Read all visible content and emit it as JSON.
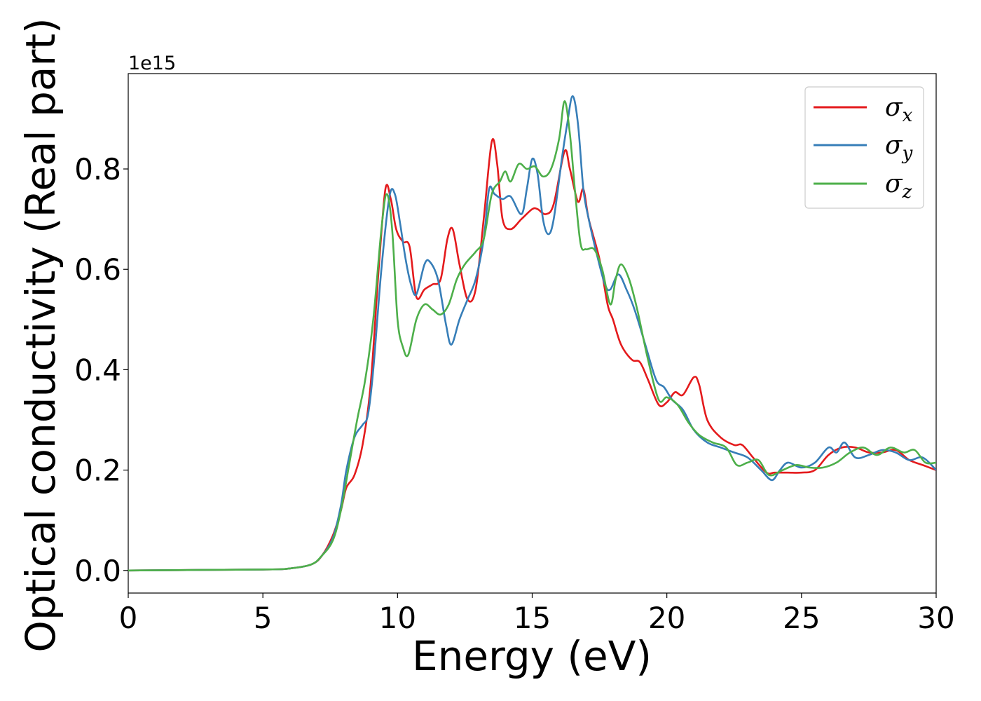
{
  "chart_data": {
    "type": "line",
    "xlabel": "Energy (eV)",
    "ylabel": "Optical conductivity (Real part)",
    "offset_label": "1e15",
    "xlim": [
      0,
      30
    ],
    "ylim": [
      -0.045,
      0.99
    ],
    "xticks": [
      0,
      5,
      10,
      15,
      20,
      25,
      30
    ],
    "yticks": [
      0.0,
      0.2,
      0.4,
      0.6,
      0.8
    ],
    "xtick_labels": [
      "0",
      "5",
      "10",
      "15",
      "20",
      "25",
      "30"
    ],
    "ytick_labels": [
      "0.0",
      "0.2",
      "0.4",
      "0.6",
      "0.8"
    ],
    "grid": false,
    "legend_position": "top-right",
    "series": [
      {
        "name": "σ",
        "subscript": "x",
        "color": "#e41a1c",
        "points": [
          [
            0,
            0
          ],
          [
            5,
            0.002
          ],
          [
            6,
            0.004
          ],
          [
            6.8,
            0.012
          ],
          [
            7.2,
            0.03
          ],
          [
            7.6,
            0.07
          ],
          [
            7.9,
            0.12
          ],
          [
            8.1,
            0.165
          ],
          [
            8.4,
            0.19
          ],
          [
            8.7,
            0.25
          ],
          [
            9.0,
            0.37
          ],
          [
            9.3,
            0.6
          ],
          [
            9.55,
            0.76
          ],
          [
            9.75,
            0.74
          ],
          [
            9.95,
            0.68
          ],
          [
            10.2,
            0.655
          ],
          [
            10.45,
            0.645
          ],
          [
            10.7,
            0.545
          ],
          [
            11.0,
            0.56
          ],
          [
            11.3,
            0.57
          ],
          [
            11.6,
            0.58
          ],
          [
            11.85,
            0.66
          ],
          [
            12.05,
            0.68
          ],
          [
            12.3,
            0.61
          ],
          [
            12.6,
            0.54
          ],
          [
            12.9,
            0.56
          ],
          [
            13.2,
            0.7
          ],
          [
            13.5,
            0.855
          ],
          [
            13.7,
            0.81
          ],
          [
            13.9,
            0.7
          ],
          [
            14.2,
            0.68
          ],
          [
            14.6,
            0.7
          ],
          [
            15.0,
            0.72
          ],
          [
            15.2,
            0.72
          ],
          [
            15.5,
            0.71
          ],
          [
            15.8,
            0.73
          ],
          [
            16.2,
            0.835
          ],
          [
            16.4,
            0.8
          ],
          [
            16.7,
            0.735
          ],
          [
            16.9,
            0.76
          ],
          [
            17.1,
            0.7
          ],
          [
            17.5,
            0.62
          ],
          [
            17.8,
            0.53
          ],
          [
            18.0,
            0.5
          ],
          [
            18.3,
            0.45
          ],
          [
            18.7,
            0.42
          ],
          [
            19.0,
            0.415
          ],
          [
            19.3,
            0.38
          ],
          [
            19.7,
            0.33
          ],
          [
            20.0,
            0.335
          ],
          [
            20.3,
            0.355
          ],
          [
            20.6,
            0.35
          ],
          [
            21.0,
            0.385
          ],
          [
            21.2,
            0.37
          ],
          [
            21.5,
            0.3
          ],
          [
            22.0,
            0.265
          ],
          [
            22.5,
            0.25
          ],
          [
            22.8,
            0.25
          ],
          [
            23.2,
            0.225
          ],
          [
            23.7,
            0.195
          ],
          [
            24.0,
            0.195
          ],
          [
            24.5,
            0.195
          ],
          [
            25.0,
            0.195
          ],
          [
            25.5,
            0.2
          ],
          [
            26.0,
            0.23
          ],
          [
            26.5,
            0.245
          ],
          [
            27.0,
            0.245
          ],
          [
            27.5,
            0.235
          ],
          [
            28.0,
            0.235
          ],
          [
            28.5,
            0.24
          ],
          [
            29.0,
            0.22
          ],
          [
            29.5,
            0.21
          ],
          [
            30,
            0.2
          ]
        ]
      },
      {
        "name": "σ",
        "subscript": "y",
        "color": "#377eb8",
        "points": [
          [
            0,
            0
          ],
          [
            5,
            0.002
          ],
          [
            6,
            0.004
          ],
          [
            6.8,
            0.012
          ],
          [
            7.2,
            0.03
          ],
          [
            7.6,
            0.065
          ],
          [
            7.9,
            0.13
          ],
          [
            8.1,
            0.2
          ],
          [
            8.4,
            0.265
          ],
          [
            8.7,
            0.29
          ],
          [
            8.9,
            0.31
          ],
          [
            9.1,
            0.4
          ],
          [
            9.4,
            0.6
          ],
          [
            9.7,
            0.745
          ],
          [
            9.9,
            0.75
          ],
          [
            10.1,
            0.69
          ],
          [
            10.3,
            0.62
          ],
          [
            10.5,
            0.57
          ],
          [
            10.7,
            0.55
          ],
          [
            11.0,
            0.61
          ],
          [
            11.2,
            0.615
          ],
          [
            11.5,
            0.58
          ],
          [
            11.8,
            0.49
          ],
          [
            12.0,
            0.45
          ],
          [
            12.3,
            0.5
          ],
          [
            12.6,
            0.54
          ],
          [
            12.9,
            0.58
          ],
          [
            13.2,
            0.66
          ],
          [
            13.4,
            0.76
          ],
          [
            13.6,
            0.75
          ],
          [
            13.9,
            0.74
          ],
          [
            14.2,
            0.745
          ],
          [
            14.6,
            0.71
          ],
          [
            14.8,
            0.76
          ],
          [
            15.0,
            0.82
          ],
          [
            15.2,
            0.79
          ],
          [
            15.4,
            0.7
          ],
          [
            15.6,
            0.67
          ],
          [
            15.8,
            0.7
          ],
          [
            16.1,
            0.82
          ],
          [
            16.3,
            0.89
          ],
          [
            16.5,
            0.945
          ],
          [
            16.7,
            0.89
          ],
          [
            16.9,
            0.76
          ],
          [
            17.1,
            0.7
          ],
          [
            17.4,
            0.63
          ],
          [
            17.7,
            0.57
          ],
          [
            17.9,
            0.56
          ],
          [
            18.2,
            0.59
          ],
          [
            18.5,
            0.56
          ],
          [
            18.8,
            0.52
          ],
          [
            19.2,
            0.45
          ],
          [
            19.6,
            0.38
          ],
          [
            19.9,
            0.365
          ],
          [
            20.2,
            0.34
          ],
          [
            20.6,
            0.32
          ],
          [
            21.0,
            0.28
          ],
          [
            21.5,
            0.255
          ],
          [
            22.0,
            0.245
          ],
          [
            22.5,
            0.235
          ],
          [
            23.0,
            0.225
          ],
          [
            23.5,
            0.2
          ],
          [
            23.9,
            0.18
          ],
          [
            24.2,
            0.2
          ],
          [
            24.5,
            0.215
          ],
          [
            25.0,
            0.205
          ],
          [
            25.5,
            0.215
          ],
          [
            26.0,
            0.245
          ],
          [
            26.3,
            0.235
          ],
          [
            26.6,
            0.255
          ],
          [
            27.0,
            0.225
          ],
          [
            27.5,
            0.23
          ],
          [
            28.0,
            0.24
          ],
          [
            28.5,
            0.235
          ],
          [
            29.0,
            0.22
          ],
          [
            29.5,
            0.225
          ],
          [
            30,
            0.2
          ]
        ]
      },
      {
        "name": "σ",
        "subscript": "z",
        "color": "#4daf4a",
        "points": [
          [
            0,
            0
          ],
          [
            5,
            0.002
          ],
          [
            6,
            0.004
          ],
          [
            6.8,
            0.012
          ],
          [
            7.2,
            0.03
          ],
          [
            7.6,
            0.06
          ],
          [
            7.9,
            0.12
          ],
          [
            8.2,
            0.21
          ],
          [
            8.5,
            0.3
          ],
          [
            8.8,
            0.38
          ],
          [
            9.1,
            0.5
          ],
          [
            9.4,
            0.68
          ],
          [
            9.6,
            0.75
          ],
          [
            9.8,
            0.68
          ],
          [
            10.0,
            0.5
          ],
          [
            10.2,
            0.445
          ],
          [
            10.4,
            0.43
          ],
          [
            10.7,
            0.5
          ],
          [
            11.0,
            0.53
          ],
          [
            11.3,
            0.52
          ],
          [
            11.6,
            0.51
          ],
          [
            11.9,
            0.53
          ],
          [
            12.2,
            0.58
          ],
          [
            12.5,
            0.61
          ],
          [
            12.9,
            0.635
          ],
          [
            13.2,
            0.66
          ],
          [
            13.5,
            0.75
          ],
          [
            13.8,
            0.775
          ],
          [
            14.0,
            0.795
          ],
          [
            14.2,
            0.775
          ],
          [
            14.5,
            0.81
          ],
          [
            14.8,
            0.8
          ],
          [
            15.1,
            0.805
          ],
          [
            15.4,
            0.785
          ],
          [
            15.7,
            0.8
          ],
          [
            16.0,
            0.86
          ],
          [
            16.2,
            0.935
          ],
          [
            16.4,
            0.87
          ],
          [
            16.6,
            0.75
          ],
          [
            16.8,
            0.65
          ],
          [
            17.0,
            0.64
          ],
          [
            17.3,
            0.64
          ],
          [
            17.6,
            0.6
          ],
          [
            17.9,
            0.53
          ],
          [
            18.1,
            0.58
          ],
          [
            18.3,
            0.61
          ],
          [
            18.6,
            0.58
          ],
          [
            18.9,
            0.52
          ],
          [
            19.3,
            0.42
          ],
          [
            19.7,
            0.34
          ],
          [
            20.0,
            0.345
          ],
          [
            20.4,
            0.33
          ],
          [
            20.8,
            0.295
          ],
          [
            21.2,
            0.27
          ],
          [
            21.7,
            0.255
          ],
          [
            22.2,
            0.245
          ],
          [
            22.6,
            0.21
          ],
          [
            23.0,
            0.215
          ],
          [
            23.4,
            0.22
          ],
          [
            23.8,
            0.19
          ],
          [
            24.3,
            0.2
          ],
          [
            24.8,
            0.21
          ],
          [
            25.3,
            0.205
          ],
          [
            25.8,
            0.205
          ],
          [
            26.3,
            0.215
          ],
          [
            26.8,
            0.235
          ],
          [
            27.3,
            0.245
          ],
          [
            27.8,
            0.23
          ],
          [
            28.3,
            0.245
          ],
          [
            28.8,
            0.235
          ],
          [
            29.2,
            0.24
          ],
          [
            29.6,
            0.215
          ],
          [
            30,
            0.215
          ]
        ]
      }
    ]
  }
}
